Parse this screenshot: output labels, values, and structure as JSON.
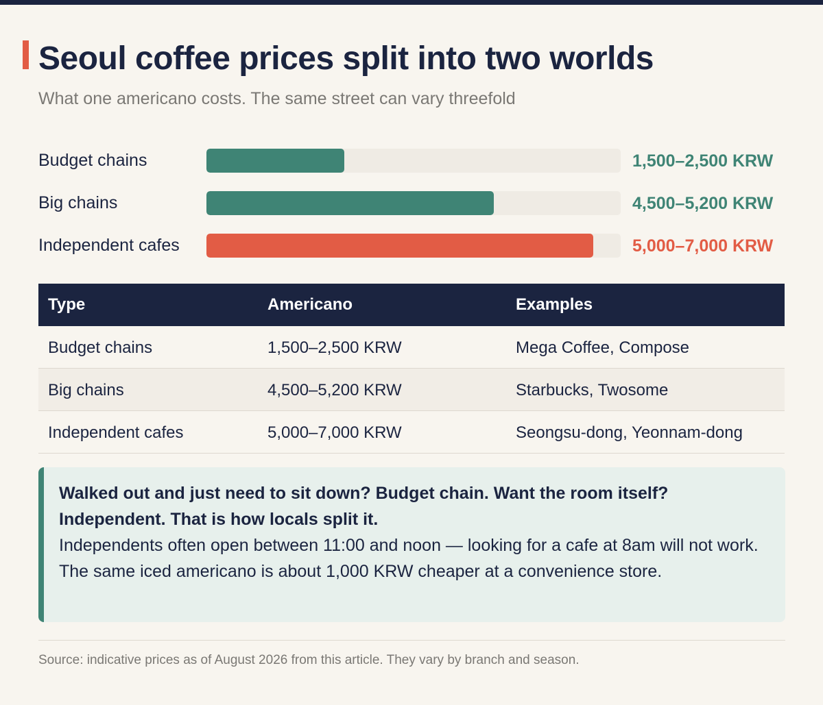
{
  "title": "Seoul coffee prices split into two worlds",
  "subtitle": "What one americano costs. The same street can vary threefold",
  "colors": {
    "navy": "#1b2440",
    "teal": "#3f8475",
    "coral": "#e25c45",
    "track": "#efebe4",
    "background": "#f8f5ef"
  },
  "chart_data": {
    "type": "bar",
    "orientation": "horizontal",
    "title": "Seoul coffee prices split into two worlds",
    "subtitle": "What one americano costs. The same street can vary threefold",
    "categories": [
      "Budget chains",
      "Big chains",
      "Independent cafes"
    ],
    "values": [
      2500,
      5200,
      7000
    ],
    "value_labels": [
      "1,500–2,500 KRW",
      "4,500–5,200 KRW",
      "5,000–7,000 KRW"
    ],
    "bar_colors": [
      "#3f8475",
      "#3f8475",
      "#e25c45"
    ],
    "xlim": [
      0,
      7500
    ],
    "xlabel": "",
    "ylabel": "",
    "grid": false,
    "legend": "none"
  },
  "table": {
    "headers": [
      "Type",
      "Americano",
      "Examples"
    ],
    "rows": [
      [
        "Budget chains",
        "1,500–2,500 KRW",
        "Mega Coffee, Compose"
      ],
      [
        "Big chains",
        "4,500–5,200 KRW",
        "Starbucks, Twosome"
      ],
      [
        "Independent cafes",
        "5,000–7,000 KRW",
        "Seongsu-dong, Yeonnam-dong"
      ]
    ]
  },
  "callout": {
    "strong": "Walked out and just need to sit down? Budget chain. Want the room itself? Independent. That is how locals split it.",
    "lines": [
      "Independents often open between 11:00 and noon — looking for a cafe at 8am will not work.",
      "The same iced americano is about 1,000 KRW cheaper at a convenience store."
    ]
  },
  "source": "Source: indicative prices as of August 2026 from this article. They vary by branch and season."
}
